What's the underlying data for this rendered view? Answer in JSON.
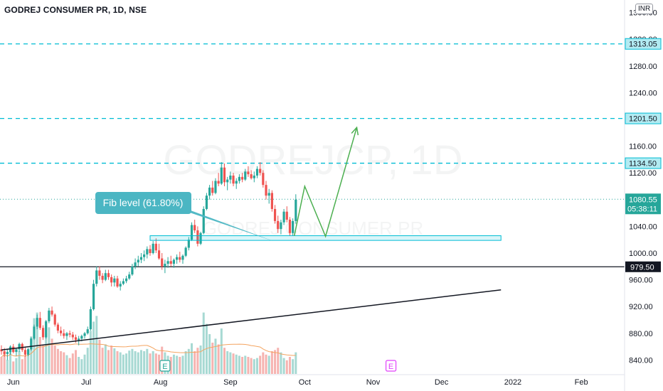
{
  "header": {
    "title": "GODREJ CONSUMER PR, 1D, NSE",
    "currency": "INR"
  },
  "watermark": {
    "symbol": "GODREJCP, 1D",
    "name": "GODREJ CONSUMER PR"
  },
  "colors": {
    "up": "#26a69a",
    "down": "#ef5350",
    "volume_up": "#a7d9d3",
    "volume_down": "#f6b3b0",
    "level_line": "#00bcd4",
    "support_line": "#131722",
    "projection": "#4caf50",
    "callout_bg": "#4bb6c3",
    "fib_box": "#00bcd4",
    "earnings": "#e040fb"
  },
  "chart_data": {
    "type": "candlestick",
    "y_axis": {
      "ticks": [
        "840.00",
        "880.00",
        "920.00",
        "960.00",
        "1000.00",
        "1040.00",
        "1080.00",
        "1120.00",
        "1160.00",
        "1200.00",
        "1240.00",
        "1280.00",
        "1320.00",
        "1360.00"
      ],
      "range": [
        825,
        1370
      ]
    },
    "x_axis": {
      "ticks": [
        "Jun",
        "Jul",
        "Aug",
        "Sep",
        "Oct",
        "Nov",
        "Dec",
        "2022",
        "Feb"
      ]
    },
    "price_labels": [
      {
        "value": 1313.05,
        "text": "1313.05",
        "style": "level"
      },
      {
        "value": 1201.5,
        "text": "1201.50",
        "style": "level"
      },
      {
        "value": 1134.5,
        "text": "1134.50",
        "style": "level"
      },
      {
        "value": 979.5,
        "text": "979.50",
        "style": "support"
      }
    ],
    "last_price": {
      "value": 1080.55,
      "text": "1080.55",
      "countdown": "05:38:11"
    },
    "fib_zone": {
      "low": 1019,
      "high": 1026
    },
    "callout": "Fib level (61.80%)",
    "trendline": {
      "from": {
        "day": 0,
        "price": 855
      },
      "to": {
        "day": 168,
        "price": 945
      }
    },
    "projection_path": [
      {
        "day": 98.5,
        "price": 1026
      },
      {
        "day": 102,
        "price": 1100
      },
      {
        "day": 109,
        "price": 1025
      },
      {
        "day": 119.5,
        "price": 1188
      }
    ],
    "earnings_markers": [
      {
        "day": 55,
        "label": "E",
        "type": "past"
      },
      {
        "day": 131,
        "label": "E",
        "type": "future"
      }
    ],
    "candles": [
      [
        856,
        862,
        848,
        853,
        30
      ],
      [
        853,
        858,
        845,
        849,
        38
      ],
      [
        849,
        856,
        840,
        852,
        25
      ],
      [
        852,
        862,
        848,
        860,
        45
      ],
      [
        860,
        864,
        850,
        852,
        22
      ],
      [
        852,
        858,
        846,
        856,
        28
      ],
      [
        856,
        866,
        852,
        864,
        40
      ],
      [
        864,
        866,
        852,
        855,
        26
      ],
      [
        855,
        860,
        845,
        848,
        31
      ],
      [
        848,
        858,
        846,
        856,
        44
      ],
      [
        856,
        874,
        854,
        872,
        66
      ],
      [
        872,
        893,
        870,
        890,
        98
      ],
      [
        890,
        908,
        886,
        903,
        108
      ],
      [
        903,
        912,
        885,
        888,
        65
      ],
      [
        888,
        892,
        870,
        874,
        50
      ],
      [
        874,
        900,
        872,
        898,
        72
      ],
      [
        898,
        918,
        895,
        914,
        82
      ],
      [
        914,
        920,
        905,
        908,
        62
      ],
      [
        908,
        910,
        890,
        893,
        50
      ],
      [
        893,
        896,
        880,
        884,
        44
      ],
      [
        884,
        890,
        876,
        880,
        40
      ],
      [
        880,
        886,
        872,
        876,
        38
      ],
      [
        876,
        882,
        870,
        880,
        33
      ],
      [
        880,
        884,
        874,
        878,
        28
      ],
      [
        878,
        882,
        870,
        874,
        36
      ],
      [
        874,
        878,
        866,
        870,
        42
      ],
      [
        870,
        876,
        862,
        872,
        30
      ],
      [
        872,
        878,
        868,
        876,
        26
      ],
      [
        876,
        882,
        872,
        880,
        34
      ],
      [
        880,
        890,
        878,
        886,
        46
      ],
      [
        886,
        920,
        884,
        916,
        76
      ],
      [
        916,
        960,
        914,
        954,
        92
      ],
      [
        954,
        980,
        950,
        974,
        102
      ],
      [
        974,
        980,
        960,
        966,
        60
      ],
      [
        966,
        970,
        955,
        960,
        46
      ],
      [
        960,
        975,
        958,
        970,
        52
      ],
      [
        970,
        975,
        960,
        964,
        42
      ],
      [
        964,
        968,
        950,
        956,
        50
      ],
      [
        956,
        966,
        950,
        962,
        45
      ],
      [
        962,
        966,
        948,
        950,
        40
      ],
      [
        950,
        958,
        944,
        954,
        38
      ],
      [
        954,
        962,
        952,
        958,
        34
      ],
      [
        958,
        966,
        955,
        962,
        36
      ],
      [
        962,
        972,
        960,
        968,
        41
      ],
      [
        968,
        984,
        966,
        980,
        44
      ],
      [
        980,
        992,
        976,
        986,
        40
      ],
      [
        986,
        996,
        980,
        990,
        38
      ],
      [
        990,
        1000,
        985,
        994,
        42
      ],
      [
        994,
        1004,
        988,
        998,
        40
      ],
      [
        998,
        1010,
        992,
        1006,
        44
      ],
      [
        1006,
        1012,
        996,
        1000,
        36
      ],
      [
        1000,
        1018,
        998,
        1014,
        40
      ],
      [
        1014,
        1022,
        1000,
        1004,
        36
      ],
      [
        1004,
        1014,
        990,
        992,
        34
      ],
      [
        992,
        1000,
        975,
        980,
        48
      ],
      [
        980,
        990,
        970,
        984,
        38
      ],
      [
        984,
        994,
        978,
        988,
        32
      ],
      [
        988,
        996,
        980,
        984,
        30
      ],
      [
        984,
        992,
        978,
        990,
        34
      ],
      [
        990,
        998,
        984,
        994,
        32
      ],
      [
        994,
        1002,
        986,
        990,
        30
      ],
      [
        990,
        998,
        984,
        996,
        32
      ],
      [
        996,
        1010,
        994,
        1008,
        40
      ],
      [
        1008,
        1024,
        1004,
        1020,
        44
      ],
      [
        1020,
        1046,
        1018,
        1042,
        54
      ],
      [
        1042,
        1050,
        1030,
        1034,
        40
      ],
      [
        1034,
        1040,
        1010,
        1014,
        46
      ],
      [
        1014,
        1032,
        1012,
        1030,
        50
      ],
      [
        1030,
        1070,
        1028,
        1066,
        108
      ],
      [
        1066,
        1090,
        1064,
        1086,
        88
      ],
      [
        1086,
        1102,
        1080,
        1098,
        70
      ],
      [
        1098,
        1108,
        1086,
        1090,
        55
      ],
      [
        1090,
        1112,
        1088,
        1108,
        62
      ],
      [
        1108,
        1120,
        1100,
        1104,
        52
      ],
      [
        1104,
        1136,
        1102,
        1128,
        80
      ],
      [
        1128,
        1134,
        1100,
        1106,
        46
      ],
      [
        1106,
        1114,
        1094,
        1110,
        40
      ],
      [
        1110,
        1122,
        1104,
        1116,
        38
      ],
      [
        1116,
        1120,
        1100,
        1104,
        36
      ],
      [
        1104,
        1112,
        1096,
        1108,
        34
      ],
      [
        1108,
        1118,
        1104,
        1114,
        32
      ],
      [
        1114,
        1120,
        1106,
        1110,
        30
      ],
      [
        1110,
        1126,
        1108,
        1122,
        32
      ],
      [
        1122,
        1130,
        1114,
        1118,
        30
      ],
      [
        1118,
        1124,
        1110,
        1112,
        28
      ],
      [
        1112,
        1122,
        1106,
        1116,
        26
      ],
      [
        1116,
        1130,
        1112,
        1126,
        28
      ],
      [
        1126,
        1136,
        1116,
        1120,
        32
      ],
      [
        1120,
        1124,
        1098,
        1102,
        38
      ],
      [
        1102,
        1108,
        1080,
        1086,
        34
      ],
      [
        1086,
        1096,
        1074,
        1090,
        32
      ],
      [
        1090,
        1094,
        1062,
        1066,
        40
      ],
      [
        1066,
        1072,
        1044,
        1048,
        42
      ],
      [
        1048,
        1056,
        1030,
        1036,
        46
      ],
      [
        1036,
        1050,
        1028,
        1046,
        38
      ],
      [
        1046,
        1066,
        1042,
        1062,
        28
      ],
      [
        1062,
        1070,
        1046,
        1050,
        24
      ],
      [
        1050,
        1054,
        1026,
        1030,
        30
      ],
      [
        1030,
        1052,
        1026,
        1048,
        26
      ],
      [
        1048,
        1088,
        1044,
        1080,
        38
      ]
    ]
  }
}
